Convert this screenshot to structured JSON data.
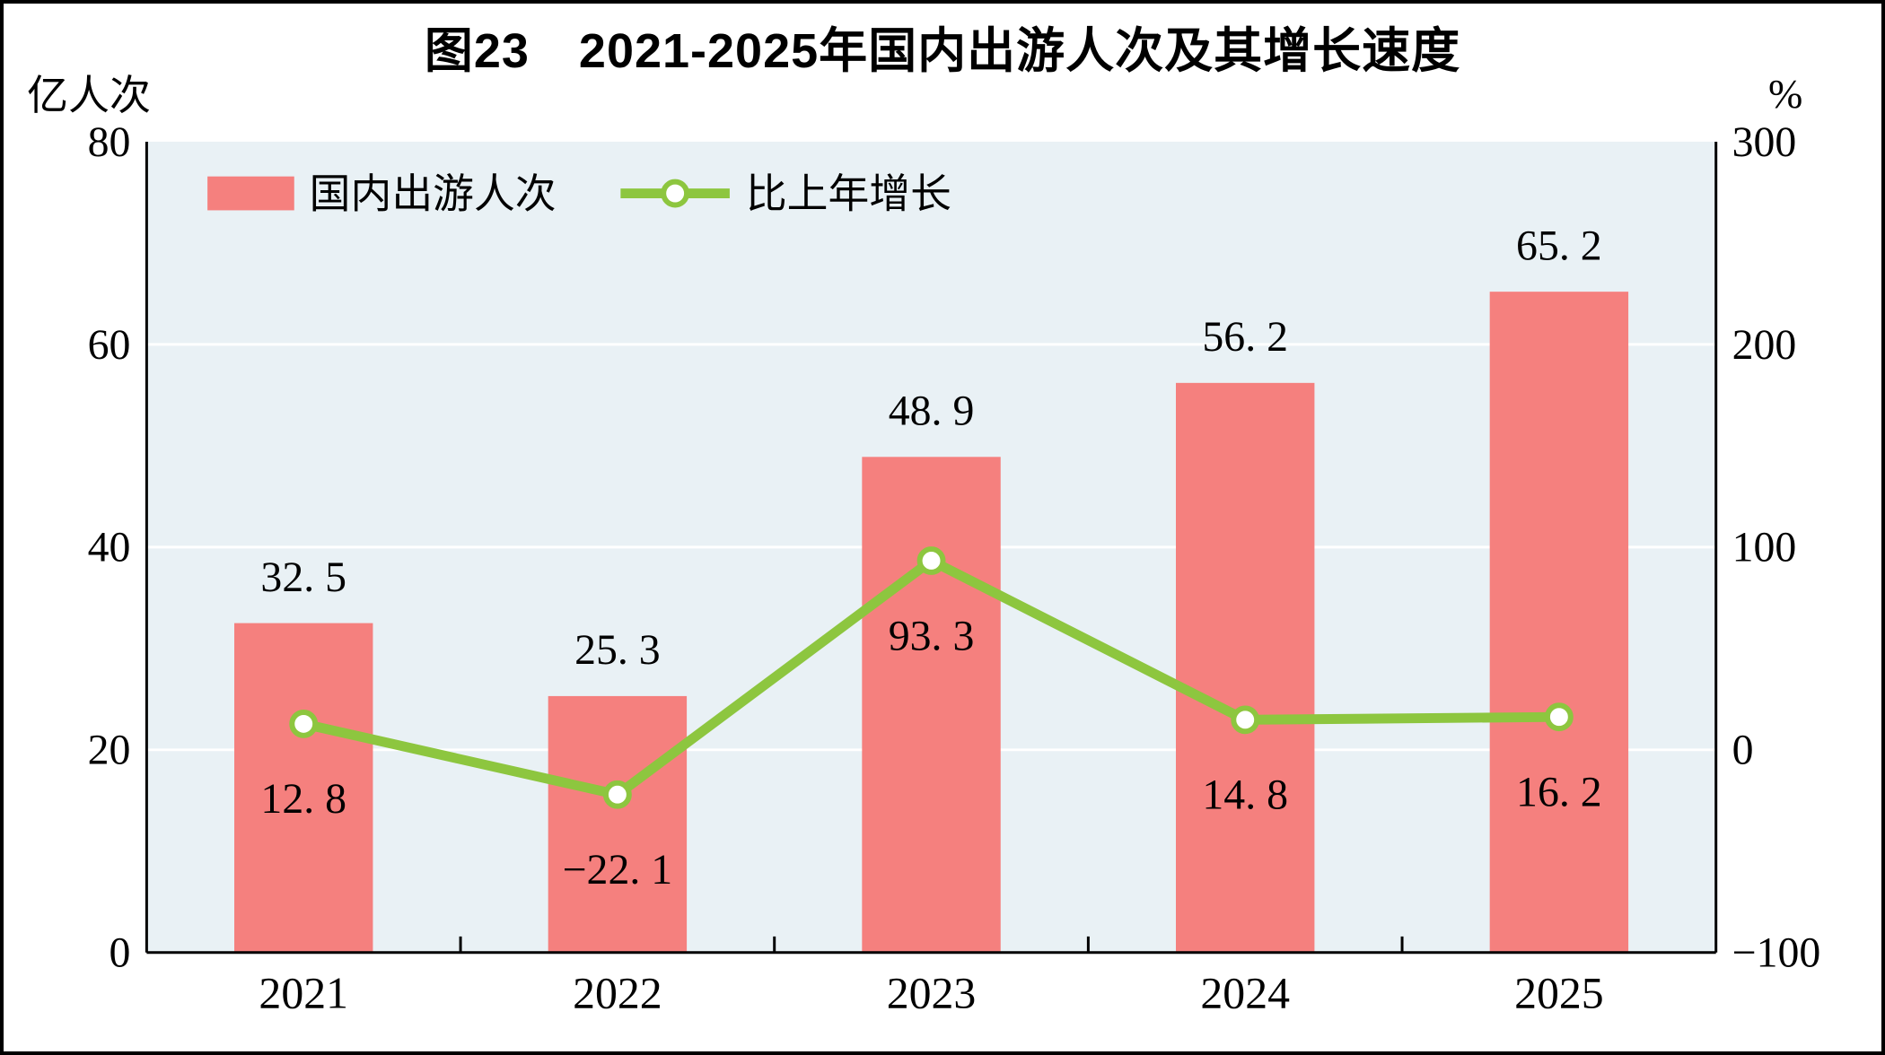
{
  "chart_data": {
    "type": "combo",
    "title": "图23　2021-2025年国内出游人次及其增长速度",
    "categories": [
      "2021",
      "2022",
      "2023",
      "2024",
      "2025"
    ],
    "left_axis": {
      "unit": "亿人次",
      "min": 0,
      "max": 80,
      "ticks": [
        0,
        20,
        40,
        60,
        80
      ],
      "tick_labels": [
        "0",
        "20",
        "40",
        "60",
        "80"
      ]
    },
    "right_axis": {
      "unit": "%",
      "min": -100,
      "max": 300,
      "ticks": [
        -100,
        0,
        100,
        200,
        300
      ],
      "tick_labels": [
        "−100",
        "0",
        "100",
        "200",
        "300"
      ]
    },
    "series": [
      {
        "name": "国内出游人次",
        "type": "bar",
        "axis": "left",
        "color": "#F5807E",
        "values": [
          32.5,
          25.3,
          48.9,
          56.2,
          65.2
        ],
        "labels": [
          "32. 5",
          "25. 3",
          "48. 9",
          "56. 2",
          "65. 2"
        ]
      },
      {
        "name": "比上年增长",
        "type": "line",
        "axis": "right",
        "color": "#8DC63F",
        "marker_fill": "#FFFFFF",
        "values": [
          12.8,
          -22.1,
          93.3,
          14.8,
          16.2
        ],
        "labels": [
          "12. 8",
          "−22. 1",
          "93. 3",
          "14. 8",
          "16. 2"
        ]
      }
    ],
    "legend_position": "top-left",
    "grid": "horizontal",
    "plot_bg": "#E9F1F5",
    "grid_color": "#FFFFFF",
    "axis_color": "#000000"
  }
}
